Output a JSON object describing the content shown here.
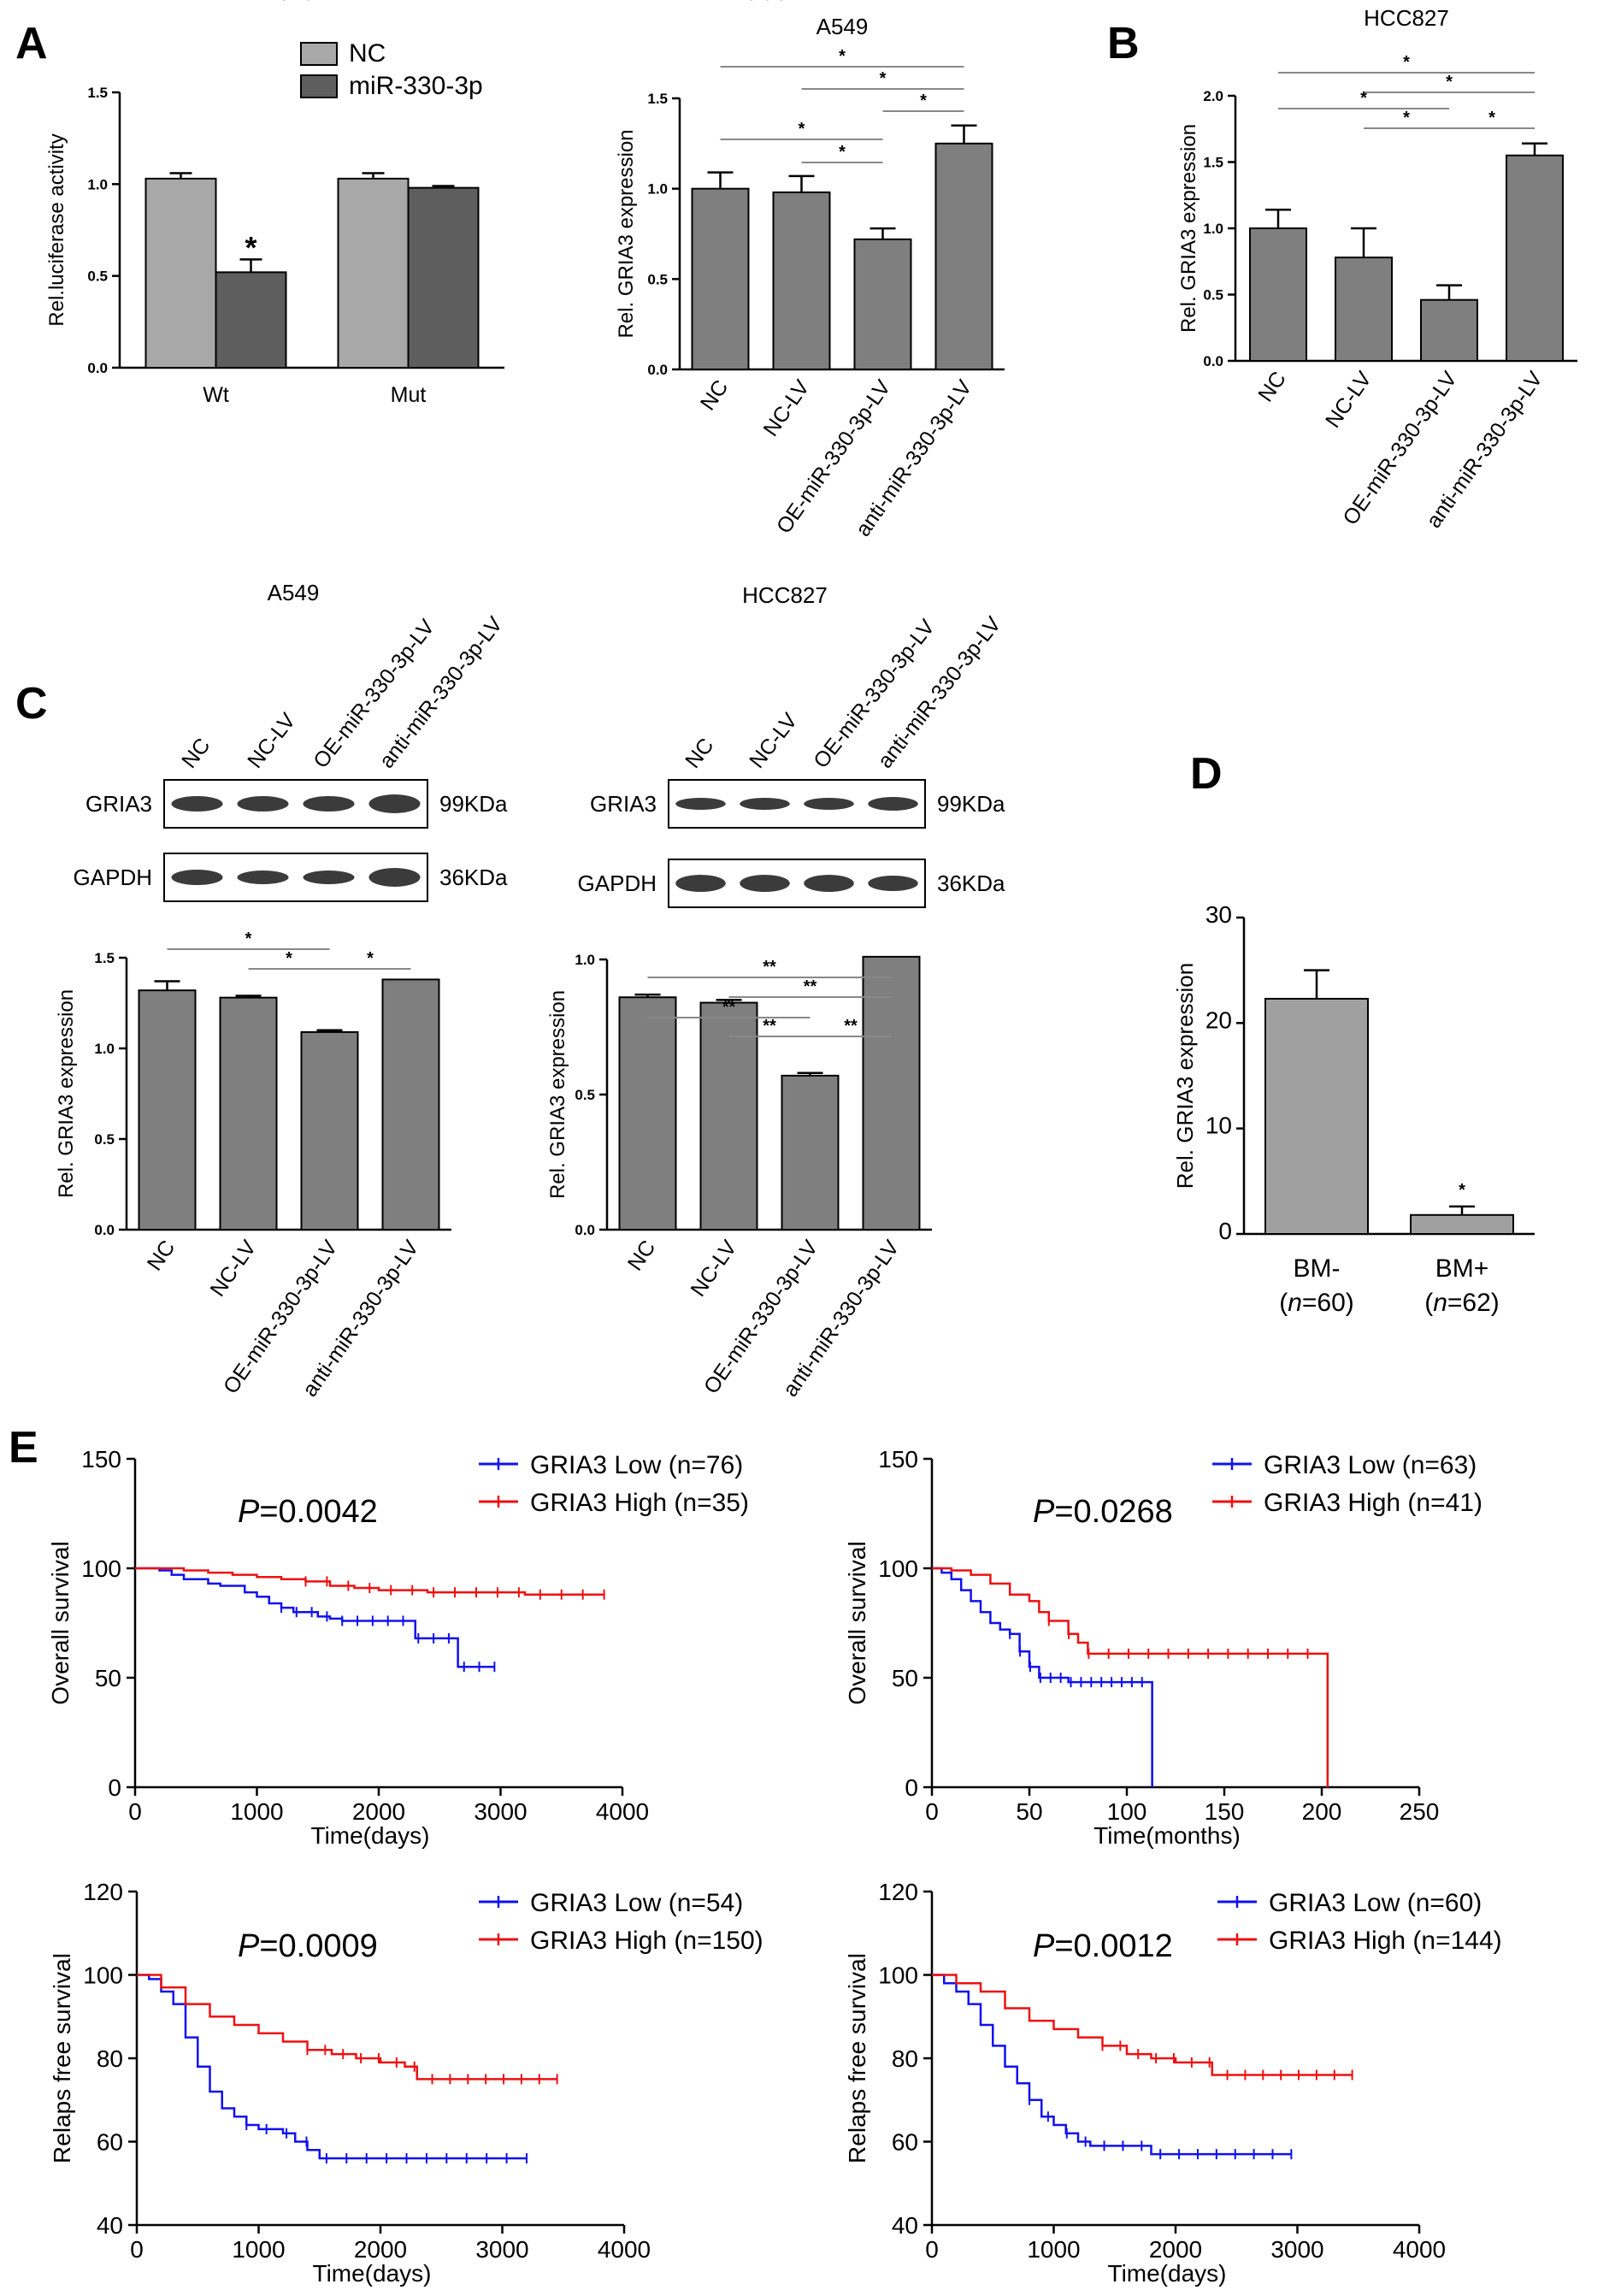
{
  "panel_labels": {
    "A": "A",
    "B": "B",
    "C": "C",
    "D": "D",
    "E": "E"
  },
  "colors": {
    "bar_light": "#a8a8a8",
    "bar_dark": "#5e5e5e",
    "bar_mid": "#7f7f7f",
    "low": "#1010ee",
    "high": "#ee1010"
  },
  "chart_data": [
    {
      "id": "luc",
      "type": "bar",
      "title": "",
      "xlabel": "",
      "ylabel": "Rel.luciferase activity",
      "categories": [
        "Wt",
        "Mut"
      ],
      "series": [
        {
          "name": "NC",
          "values": [
            1.03,
            1.03
          ],
          "errors": [
            0.03,
            0.03
          ]
        },
        {
          "name": "miR-330-3p",
          "values": [
            0.52,
            0.98
          ],
          "errors": [
            0.07,
            0.01
          ]
        }
      ],
      "ylim": [
        0.0,
        1.5
      ],
      "yticks": [
        "0.0",
        "0.5",
        "1.0",
        "1.5"
      ],
      "sig_labels": [
        "*"
      ]
    },
    {
      "id": "a549q",
      "type": "bar",
      "title": "A549",
      "xlabel": "",
      "ylabel": "Rel. GRIA3 expression",
      "categories": [
        "NC",
        "NC-LV",
        "OE-miR-330-3p-LV",
        "anti-miR-330-3p-LV"
      ],
      "values": [
        1.0,
        0.98,
        0.72,
        1.25
      ],
      "errors": [
        0.09,
        0.09,
        0.06,
        0.1
      ],
      "ylim": [
        0.0,
        1.5
      ],
      "yticks": [
        "0.0",
        "0.5",
        "1.0",
        "1.5"
      ],
      "sig_labels": [
        "*",
        "*",
        "*",
        "*",
        "*"
      ]
    },
    {
      "id": "hccq",
      "type": "bar",
      "title": "HCC827",
      "xlabel": "",
      "ylabel": "Rel. GRIA3 expression",
      "categories": [
        "NC",
        "NC-LV",
        "OE-miR-330-3p-LV",
        "anti-miR-330-3p-LV"
      ],
      "values": [
        1.0,
        0.78,
        0.46,
        1.55
      ],
      "errors": [
        0.14,
        0.22,
        0.11,
        0.09
      ],
      "ylim": [
        0.0,
        2.0
      ],
      "yticks": [
        "0.0",
        "0.5",
        "1.0",
        "1.5",
        "2.0"
      ],
      "sig_labels": [
        "*",
        "*",
        "*",
        "*",
        "*"
      ]
    },
    {
      "id": "a549wb",
      "type": "bar",
      "title": "A549",
      "xlabel": "",
      "ylabel": "Rel. GRIA3 expression",
      "categories": [
        "NC",
        "NC-LV",
        "OE-miR-330-3p-LV",
        "anti-miR-330-3p-LV"
      ],
      "values": [
        1.32,
        1.28,
        1.09,
        1.38
      ],
      "errors": [
        0.05,
        0.01,
        0.01,
        0.0
      ],
      "ylim": [
        0.0,
        1.5
      ],
      "yticks": [
        "0.0",
        "0.5",
        "1.0",
        "1.5"
      ],
      "sig_labels": [
        "*",
        "*",
        "*"
      ]
    },
    {
      "id": "hccwb",
      "type": "bar",
      "title": "HCC827",
      "xlabel": "",
      "ylabel": "Rel. GRIA3 expression",
      "categories": [
        "NC",
        "NC-LV",
        "OE-miR-330-3p-LV",
        "anti-miR-330-3p-LV"
      ],
      "values": [
        0.86,
        0.84,
        0.57,
        1.01
      ],
      "errors": [
        0.01,
        0.01,
        0.01,
        0.0
      ],
      "ylim": [
        0.0,
        1.0
      ],
      "yticks": [
        "0.0",
        "0.5",
        "1.0"
      ],
      "sig_labels": [
        "**",
        "**",
        "**",
        "**",
        "**"
      ]
    },
    {
      "id": "bm",
      "type": "bar",
      "title": "",
      "xlabel": "",
      "ylabel": "Rel. GRIA3 expression",
      "categories": [
        "BM-",
        "BM+"
      ],
      "category_n": [
        "(n=60)",
        "(n=62)"
      ],
      "values": [
        22.3,
        1.8
      ],
      "errors": [
        2.7,
        0.8
      ],
      "ylim": [
        0,
        30
      ],
      "yticks": [
        "0",
        "10",
        "20",
        "30"
      ],
      "sig_labels": [
        "*"
      ]
    },
    {
      "id": "km1",
      "type": "line",
      "title": "",
      "p_prefix": "P",
      "p_value": "=0.0042",
      "xlabel": "Time(days)",
      "ylabel": "Overall survival",
      "xlim": [
        0,
        4000
      ],
      "ylim": [
        0,
        150
      ],
      "xticks": [
        "0",
        "1000",
        "2000",
        "3000",
        "4000"
      ],
      "yticks": [
        "0",
        "50",
        "100",
        "150"
      ],
      "series": [
        {
          "name": "GRIA3 Low (n=76)",
          "x": [
            0,
            100,
            200,
            300,
            400,
            600,
            700,
            900,
            1000,
            1100,
            1200,
            1300,
            1500,
            1600,
            1700,
            1900,
            2000,
            2250,
            2300,
            2600,
            2650,
            2900,
            2950
          ],
          "y": [
            100,
            100,
            99,
            97,
            95,
            93,
            92,
            89,
            87,
            84,
            82,
            80,
            78,
            77,
            76,
            76,
            76,
            76,
            68,
            68,
            55,
            55,
            55
          ]
        },
        {
          "name": "GRIA3 High (n=35)",
          "x": [
            0,
            200,
            400,
            600,
            800,
            1000,
            1200,
            1400,
            1600,
            1800,
            2000,
            2400,
            2800,
            3200,
            3600,
            3850
          ],
          "y": [
            100,
            100,
            99,
            98,
            97,
            96,
            95,
            94,
            92,
            91,
            90,
            89,
            89,
            88,
            88,
            88
          ]
        }
      ]
    },
    {
      "id": "km2",
      "type": "line",
      "title": "",
      "p_prefix": "P",
      "p_value": "=0.0268",
      "xlabel": "Time(months)",
      "ylabel": "Overall survival",
      "xlim": [
        0,
        250
      ],
      "ylim": [
        0,
        150
      ],
      "xticks": [
        "0",
        "50",
        "100",
        "150",
        "200",
        "250"
      ],
      "yticks": [
        "0",
        "50",
        "100",
        "150"
      ],
      "series": [
        {
          "name": "GRIA3 Low (n=63)",
          "x": [
            0,
            5,
            10,
            15,
            20,
            25,
            30,
            35,
            40,
            45,
            50,
            55,
            60,
            70,
            80,
            90,
            100,
            113,
            113
          ],
          "y": [
            100,
            98,
            95,
            90,
            85,
            80,
            75,
            72,
            70,
            62,
            55,
            50,
            50,
            48,
            48,
            48,
            48,
            48,
            0
          ]
        },
        {
          "name": "GRIA3 High (n=41)",
          "x": [
            0,
            10,
            20,
            30,
            40,
            50,
            55,
            60,
            70,
            75,
            80,
            100,
            150,
            200,
            203,
            203
          ],
          "y": [
            100,
            99,
            97,
            93,
            88,
            85,
            80,
            76,
            70,
            66,
            61,
            61,
            61,
            61,
            61,
            0
          ]
        }
      ]
    },
    {
      "id": "km3",
      "type": "line",
      "title": "",
      "p_prefix": "P",
      "p_value": "=0.0009",
      "xlabel": "Time(days)",
      "ylabel": "Relaps free survival",
      "xlim": [
        0,
        4000
      ],
      "ylim": [
        40,
        120
      ],
      "xticks": [
        "0",
        "1000",
        "2000",
        "3000",
        "4000"
      ],
      "yticks": [
        "40",
        "60",
        "80",
        "100",
        "120"
      ],
      "series": [
        {
          "name": "GRIA3 Low (n=54)",
          "x": [
            0,
            100,
            200,
            300,
            400,
            500,
            600,
            700,
            800,
            900,
            1000,
            1100,
            1200,
            1300,
            1400,
            1500,
            2000,
            2500,
            3000,
            3200
          ],
          "y": [
            100,
            99,
            96,
            93,
            85,
            78,
            72,
            68,
            66,
            64,
            63,
            63,
            62,
            60,
            58,
            56,
            56,
            56,
            56,
            56
          ]
        },
        {
          "name": "GRIA3 High (n=150)",
          "x": [
            0,
            200,
            400,
            600,
            800,
            1000,
            1200,
            1400,
            1600,
            1800,
            2000,
            2200,
            2300,
            2500,
            3000,
            3450
          ],
          "y": [
            100,
            97,
            93,
            90,
            88,
            86,
            84,
            82,
            81,
            80,
            79,
            78,
            75,
            75,
            75,
            75
          ]
        }
      ]
    },
    {
      "id": "km4",
      "type": "line",
      "title": "",
      "p_prefix": "P",
      "p_value": "=0.0012",
      "xlabel": "Time(days)",
      "ylabel": "Relaps free survival",
      "xlim": [
        0,
        4000
      ],
      "ylim": [
        40,
        120
      ],
      "xticks": [
        "0",
        "1000",
        "2000",
        "3000",
        "4000"
      ],
      "yticks": [
        "40",
        "60",
        "80",
        "100",
        "120"
      ],
      "series": [
        {
          "name": "GRIA3 Low (n=60)",
          "x": [
            0,
            100,
            200,
            300,
            400,
            500,
            600,
            700,
            800,
            900,
            1000,
            1100,
            1200,
            1300,
            1700,
            1800,
            2500,
            2950
          ],
          "y": [
            100,
            98,
            96,
            93,
            88,
            83,
            78,
            74,
            70,
            66,
            64,
            62,
            60,
            59,
            59,
            57,
            57,
            57
          ]
        },
        {
          "name": "GRIA3 High (n=144)",
          "x": [
            0,
            200,
            400,
            600,
            800,
            1000,
            1200,
            1400,
            1600,
            1800,
            2000,
            2200,
            2300,
            2500,
            3000,
            3450
          ],
          "y": [
            100,
            98,
            96,
            92,
            89,
            87,
            85,
            83,
            81,
            80,
            79,
            79,
            76,
            76,
            76,
            76
          ]
        }
      ]
    }
  ],
  "blots": [
    {
      "title": "A549",
      "lanes": [
        "NC",
        "NC-LV",
        "OE-miR-330-3p-LV",
        "anti-miR-330-3p-LV"
      ],
      "rows": [
        {
          "protein": "GRIA3",
          "size": "99KDa"
        },
        {
          "protein": "GAPDH",
          "size": "36KDa"
        }
      ]
    },
    {
      "title": "HCC827",
      "lanes": [
        "NC",
        "NC-LV",
        "OE-miR-330-3p-LV",
        "anti-miR-330-3p-LV"
      ],
      "rows": [
        {
          "protein": "GRIA3",
          "size": "99KDa"
        },
        {
          "protein": "GAPDH",
          "size": "36KDa"
        }
      ]
    }
  ]
}
